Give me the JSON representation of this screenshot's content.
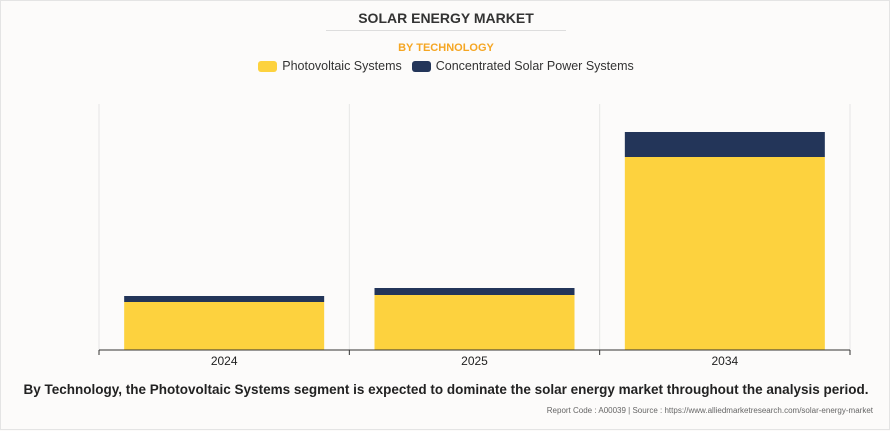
{
  "chart_data": {
    "type": "bar",
    "stacked": true,
    "title": "SOLAR ENERGY MARKET",
    "subtitle": "BY TECHNOLOGY",
    "categories": [
      "2024",
      "2025",
      "2034"
    ],
    "series": [
      {
        "name": "Photovoltaic Systems",
        "color": "#fdd23e",
        "values": [
          48,
          55,
          193
        ]
      },
      {
        "name": "Concentrated Solar Power Systems",
        "color": "#233559",
        "values": [
          6,
          7,
          25
        ]
      }
    ],
    "ylim": [
      0,
      246
    ],
    "y_axis_shown": false,
    "grid": "vertical",
    "legend_position": "top"
  },
  "caption": "By Technology, the Photovoltaic Systems segment is expected to dominate the solar energy market throughout the analysis period.",
  "footer": "Report Code : A00039  |  Source : https://www.alliedmarketresearch.com/solar-energy-market"
}
